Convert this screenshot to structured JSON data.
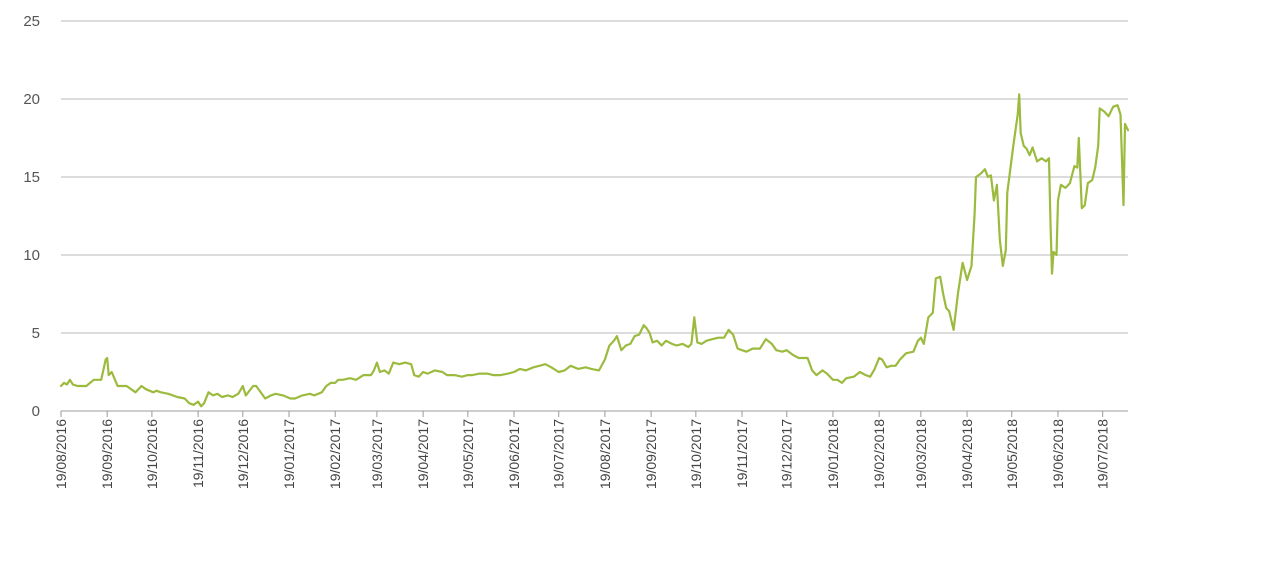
{
  "chart_data": {
    "type": "line",
    "title": "",
    "xlabel": "",
    "ylabel": "",
    "ylim": [
      0,
      25
    ],
    "yticks": [
      0,
      5,
      10,
      15,
      20,
      25
    ],
    "grid": true,
    "legend": "none",
    "x_tick_labels": [
      "19/08/2016",
      "19/09/2016",
      "19/10/2016",
      "19/11/2016",
      "19/12/2016",
      "19/01/2017",
      "19/02/2017",
      "19/03/2017",
      "19/04/2017",
      "19/05/2017",
      "19/06/2017",
      "19/07/2017",
      "19/08/2017",
      "19/09/2017",
      "19/10/2017",
      "19/11/2017",
      "19/12/2017",
      "19/01/2018",
      "19/02/2018",
      "19/03/2018",
      "19/04/2018",
      "19/05/2018",
      "19/06/2018",
      "19/07/2018"
    ],
    "line_color": "#9cba3e",
    "series": [
      {
        "values": [
          [
            "2016-08-19",
            1.6
          ],
          [
            "2016-08-21",
            1.8
          ],
          [
            "2016-08-23",
            1.7
          ],
          [
            "2016-08-25",
            2.0
          ],
          [
            "2016-08-27",
            1.7
          ],
          [
            "2016-08-30",
            1.6
          ],
          [
            "2016-09-05",
            1.6
          ],
          [
            "2016-09-10",
            2.0
          ],
          [
            "2016-09-15",
            2.0
          ],
          [
            "2016-09-18",
            3.3
          ],
          [
            "2016-09-19",
            3.4
          ],
          [
            "2016-09-20",
            2.3
          ],
          [
            "2016-09-22",
            2.5
          ],
          [
            "2016-09-26",
            1.6
          ],
          [
            "2016-10-02",
            1.6
          ],
          [
            "2016-10-08",
            1.2
          ],
          [
            "2016-10-12",
            1.6
          ],
          [
            "2016-10-15",
            1.4
          ],
          [
            "2016-10-20",
            1.2
          ],
          [
            "2016-10-22",
            1.3
          ],
          [
            "2016-10-25",
            1.2
          ],
          [
            "2016-10-30",
            1.1
          ],
          [
            "2016-11-05",
            0.9
          ],
          [
            "2016-11-10",
            0.8
          ],
          [
            "2016-11-13",
            0.5
          ],
          [
            "2016-11-16",
            0.4
          ],
          [
            "2016-11-19",
            0.6
          ],
          [
            "2016-11-21",
            0.3
          ],
          [
            "2016-11-23",
            0.5
          ],
          [
            "2016-11-26",
            1.2
          ],
          [
            "2016-11-29",
            1.0
          ],
          [
            "2016-12-02",
            1.1
          ],
          [
            "2016-12-05",
            0.9
          ],
          [
            "2016-12-09",
            1.0
          ],
          [
            "2016-12-12",
            0.9
          ],
          [
            "2016-12-16",
            1.1
          ],
          [
            "2016-12-19",
            1.6
          ],
          [
            "2016-12-21",
            1.0
          ],
          [
            "2016-12-26",
            1.6
          ],
          [
            "2016-12-28",
            1.6
          ],
          [
            "2017-01-03",
            0.8
          ],
          [
            "2017-01-07",
            1.0
          ],
          [
            "2017-01-10",
            1.1
          ],
          [
            "2017-01-15",
            1.0
          ],
          [
            "2017-01-20",
            0.8
          ],
          [
            "2017-01-23",
            0.8
          ],
          [
            "2017-01-28",
            1.0
          ],
          [
            "2017-02-02",
            1.1
          ],
          [
            "2017-02-05",
            1.0
          ],
          [
            "2017-02-10",
            1.2
          ],
          [
            "2017-02-13",
            1.6
          ],
          [
            "2017-02-16",
            1.8
          ],
          [
            "2017-02-19",
            1.8
          ],
          [
            "2017-02-21",
            2.0
          ],
          [
            "2017-02-24",
            2.0
          ],
          [
            "2017-03-01",
            2.1
          ],
          [
            "2017-03-05",
            2.0
          ],
          [
            "2017-03-10",
            2.3
          ],
          [
            "2017-03-15",
            2.3
          ],
          [
            "2017-03-17",
            2.6
          ],
          [
            "2017-03-19",
            3.1
          ],
          [
            "2017-03-21",
            2.5
          ],
          [
            "2017-03-24",
            2.6
          ],
          [
            "2017-03-27",
            2.4
          ],
          [
            "2017-03-30",
            3.1
          ],
          [
            "2017-04-03",
            3.0
          ],
          [
            "2017-04-07",
            3.1
          ],
          [
            "2017-04-11",
            3.0
          ],
          [
            "2017-04-13",
            2.3
          ],
          [
            "2017-04-16",
            2.2
          ],
          [
            "2017-04-19",
            2.5
          ],
          [
            "2017-04-22",
            2.4
          ],
          [
            "2017-04-27",
            2.6
          ],
          [
            "2017-05-02",
            2.5
          ],
          [
            "2017-05-05",
            2.3
          ],
          [
            "2017-05-10",
            2.3
          ],
          [
            "2017-05-15",
            2.2
          ],
          [
            "2017-05-19",
            2.3
          ],
          [
            "2017-05-22",
            2.3
          ],
          [
            "2017-05-27",
            2.4
          ],
          [
            "2017-06-01",
            2.4
          ],
          [
            "2017-06-05",
            2.3
          ],
          [
            "2017-06-10",
            2.3
          ],
          [
            "2017-06-15",
            2.4
          ],
          [
            "2017-06-19",
            2.5
          ],
          [
            "2017-06-23",
            2.7
          ],
          [
            "2017-06-27",
            2.6
          ],
          [
            "2017-07-02",
            2.8
          ],
          [
            "2017-07-06",
            2.9
          ],
          [
            "2017-07-10",
            3.0
          ],
          [
            "2017-07-14",
            2.8
          ],
          [
            "2017-07-19",
            2.5
          ],
          [
            "2017-07-23",
            2.6
          ],
          [
            "2017-07-27",
            2.9
          ],
          [
            "2017-08-01",
            2.7
          ],
          [
            "2017-08-06",
            2.8
          ],
          [
            "2017-08-10",
            2.7
          ],
          [
            "2017-08-15",
            2.6
          ],
          [
            "2017-08-19",
            3.3
          ],
          [
            "2017-08-22",
            4.2
          ],
          [
            "2017-08-25",
            4.5
          ],
          [
            "2017-08-27",
            4.8
          ],
          [
            "2017-08-30",
            3.9
          ],
          [
            "2017-09-02",
            4.2
          ],
          [
            "2017-09-05",
            4.3
          ],
          [
            "2017-09-08",
            4.8
          ],
          [
            "2017-09-11",
            4.9
          ],
          [
            "2017-09-14",
            5.5
          ],
          [
            "2017-09-16",
            5.3
          ],
          [
            "2017-09-18",
            5.0
          ],
          [
            "2017-09-20",
            4.4
          ],
          [
            "2017-09-23",
            4.5
          ],
          [
            "2017-09-26",
            4.2
          ],
          [
            "2017-09-29",
            4.5
          ],
          [
            "2017-10-03",
            4.3
          ],
          [
            "2017-10-06",
            4.2
          ],
          [
            "2017-10-10",
            4.3
          ],
          [
            "2017-10-14",
            4.1
          ],
          [
            "2017-10-16",
            4.3
          ],
          [
            "2017-10-18",
            6.0
          ],
          [
            "2017-10-20",
            4.4
          ],
          [
            "2017-10-23",
            4.3
          ],
          [
            "2017-10-26",
            4.5
          ],
          [
            "2017-10-30",
            4.6
          ],
          [
            "2017-11-03",
            4.7
          ],
          [
            "2017-11-07",
            4.7
          ],
          [
            "2017-11-10",
            5.2
          ],
          [
            "2017-11-13",
            4.9
          ],
          [
            "2017-11-16",
            4.0
          ],
          [
            "2017-11-19",
            3.9
          ],
          [
            "2017-11-22",
            3.8
          ],
          [
            "2017-11-26",
            4.0
          ],
          [
            "2017-12-01",
            4.0
          ],
          [
            "2017-12-05",
            4.6
          ],
          [
            "2017-12-09",
            4.3
          ],
          [
            "2017-12-12",
            3.9
          ],
          [
            "2017-12-16",
            3.8
          ],
          [
            "2017-12-19",
            3.9
          ],
          [
            "2017-12-23",
            3.6
          ],
          [
            "2017-12-27",
            3.4
          ],
          [
            "2018-01-02",
            3.4
          ],
          [
            "2018-01-05",
            2.6
          ],
          [
            "2018-01-08",
            2.3
          ],
          [
            "2018-01-12",
            2.6
          ],
          [
            "2018-01-15",
            2.4
          ],
          [
            "2018-01-19",
            2.0
          ],
          [
            "2018-01-22",
            2.0
          ],
          [
            "2018-01-25",
            1.8
          ],
          [
            "2018-01-28",
            2.1
          ],
          [
            "2018-02-02",
            2.2
          ],
          [
            "2018-02-06",
            2.5
          ],
          [
            "2018-02-10",
            2.3
          ],
          [
            "2018-02-13",
            2.2
          ],
          [
            "2018-02-16",
            2.7
          ],
          [
            "2018-02-19",
            3.4
          ],
          [
            "2018-02-21",
            3.3
          ],
          [
            "2018-02-24",
            2.8
          ],
          [
            "2018-02-27",
            2.9
          ],
          [
            "2018-03-02",
            2.9
          ],
          [
            "2018-03-05",
            3.3
          ],
          [
            "2018-03-09",
            3.7
          ],
          [
            "2018-03-14",
            3.8
          ],
          [
            "2018-03-17",
            4.5
          ],
          [
            "2018-03-19",
            4.7
          ],
          [
            "2018-03-21",
            4.3
          ],
          [
            "2018-03-24",
            6.0
          ],
          [
            "2018-03-27",
            6.3
          ],
          [
            "2018-03-29",
            8.5
          ],
          [
            "2018-04-01",
            8.6
          ],
          [
            "2018-04-03",
            7.5
          ],
          [
            "2018-04-05",
            6.6
          ],
          [
            "2018-04-07",
            6.4
          ],
          [
            "2018-04-10",
            5.2
          ],
          [
            "2018-04-13",
            7.6
          ],
          [
            "2018-04-16",
            9.5
          ],
          [
            "2018-04-19",
            8.4
          ],
          [
            "2018-04-22",
            9.3
          ],
          [
            "2018-04-24",
            12.5
          ],
          [
            "2018-04-25",
            15.0
          ],
          [
            "2018-04-28",
            15.2
          ],
          [
            "2018-05-01",
            15.5
          ],
          [
            "2018-05-03",
            15.0
          ],
          [
            "2018-05-05",
            15.1
          ],
          [
            "2018-05-07",
            13.5
          ],
          [
            "2018-05-09",
            14.5
          ],
          [
            "2018-05-11",
            11.0
          ],
          [
            "2018-05-13",
            9.3
          ],
          [
            "2018-05-15",
            10.3
          ],
          [
            "2018-05-16",
            14.0
          ],
          [
            "2018-05-18",
            15.5
          ],
          [
            "2018-05-20",
            17.0
          ],
          [
            "2018-05-23",
            19.0
          ],
          [
            "2018-05-24",
            20.3
          ],
          [
            "2018-05-25",
            17.8
          ],
          [
            "2018-05-27",
            17.0
          ],
          [
            "2018-05-29",
            16.8
          ],
          [
            "2018-05-31",
            16.4
          ],
          [
            "2018-06-02",
            16.9
          ],
          [
            "2018-06-05",
            16.0
          ],
          [
            "2018-06-08",
            16.2
          ],
          [
            "2018-06-11",
            16.0
          ],
          [
            "2018-06-13",
            16.2
          ],
          [
            "2018-06-14",
            12.0
          ],
          [
            "2018-06-15",
            8.8
          ],
          [
            "2018-06-16",
            10.2
          ],
          [
            "2018-06-18",
            10.0
          ],
          [
            "2018-06-19",
            13.5
          ],
          [
            "2018-06-21",
            14.5
          ],
          [
            "2018-06-24",
            14.3
          ],
          [
            "2018-06-27",
            14.6
          ],
          [
            "2018-06-30",
            15.7
          ],
          [
            "2018-07-02",
            15.6
          ],
          [
            "2018-07-03",
            17.5
          ],
          [
            "2018-07-05",
            13.0
          ],
          [
            "2018-07-07",
            13.2
          ],
          [
            "2018-07-09",
            14.6
          ],
          [
            "2018-07-12",
            14.8
          ],
          [
            "2018-07-14",
            15.6
          ],
          [
            "2018-07-16",
            17.0
          ],
          [
            "2018-07-17",
            19.4
          ],
          [
            "2018-07-20",
            19.2
          ],
          [
            "2018-07-23",
            18.9
          ],
          [
            "2018-07-26",
            19.5
          ],
          [
            "2018-07-29",
            19.6
          ],
          [
            "2018-07-31",
            19.0
          ],
          [
            "2018-08-02",
            13.2
          ],
          [
            "2018-08-03",
            18.4
          ],
          [
            "2018-08-05",
            18.0
          ]
        ]
      }
    ]
  }
}
